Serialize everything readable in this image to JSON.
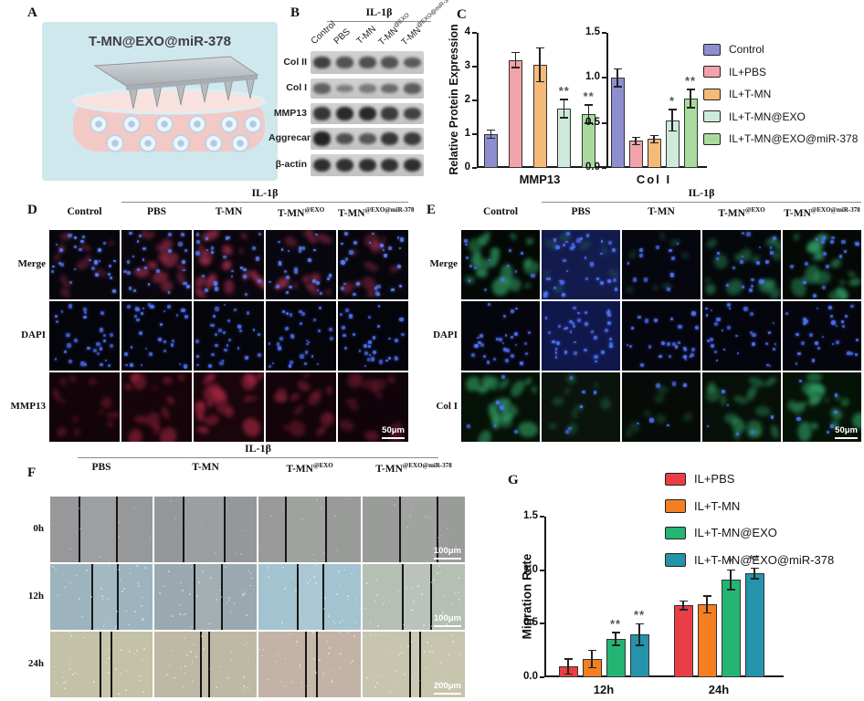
{
  "panelA": {
    "label": "A",
    "title": "T-MN@EXO@miR-378",
    "colors": {
      "bg": "#cfe8ee",
      "patch": "#c0c5c9",
      "tissue": "#f3c9c5",
      "tissue_top": "#f8e2df",
      "cell_outer": "#edf4fa",
      "cell_inner": "#aecbe3"
    }
  },
  "panelB": {
    "label": "B",
    "treatment_header": "IL-1β",
    "columns": [
      {
        "base": "Control",
        "sup": ""
      },
      {
        "base": "PBS",
        "sup": ""
      },
      {
        "base": "T-MN",
        "sup": ""
      },
      {
        "base": "T-MN",
        "sup": "@EXO"
      },
      {
        "base": "T-MN",
        "sup": "@EXO@miR-378"
      }
    ],
    "rows": [
      {
        "label": "Col II",
        "bands": [
          0.72,
          0.58,
          0.6,
          0.58,
          0.52
        ]
      },
      {
        "label": "Col I",
        "bands": [
          0.45,
          0.22,
          0.26,
          0.4,
          0.5
        ]
      },
      {
        "label": "MMP13",
        "bands": [
          0.82,
          0.92,
          0.92,
          0.78,
          0.72
        ]
      },
      {
        "label": "Aggrecan",
        "bands": [
          0.96,
          0.6,
          0.55,
          0.82,
          0.78
        ]
      },
      {
        "label": "β-actin",
        "bands": [
          0.88,
          0.86,
          0.88,
          0.86,
          0.88
        ]
      }
    ]
  },
  "panelC": {
    "label": "C",
    "legend": [
      {
        "label": "Control",
        "color": "#8d8ed0"
      },
      {
        "label": "IL+PBS",
        "color": "#f2a3aa"
      },
      {
        "label": "IL+T-MN",
        "color": "#f6ba78"
      },
      {
        "label": "IL+T-MN@EXO",
        "color": "#cfe9dc"
      },
      {
        "label": "IL+T-MN@EXO@miR-378",
        "color": "#a9db9f"
      }
    ]
  },
  "panelD": {
    "label": "D",
    "treatment_header": "IL-1β",
    "scale_bar": "50μm",
    "columns": [
      {
        "base": "Control",
        "sup": ""
      },
      {
        "base": "PBS",
        "sup": ""
      },
      {
        "base": "T-MN",
        "sup": ""
      },
      {
        "base": "T-MN",
        "sup": "@EXO"
      },
      {
        "base": "T-MN",
        "sup": "@EXO@miR-378"
      }
    ],
    "rows": [
      {
        "label": "Merge",
        "nuclei": 26,
        "ncolor": "#5b7cf2",
        "scolor": "#cf3a60",
        "stain": [
          0.3,
          0.55,
          0.75,
          0.45,
          0.35
        ],
        "bgs": [
          "#06060c",
          "#0a060d",
          "#0b060d",
          "#08060e",
          "#07060c"
        ]
      },
      {
        "label": "DAPI",
        "nuclei": 30,
        "ncolor": "#4d6ff2",
        "scolor": null,
        "stain": [
          0,
          0,
          0,
          0,
          0
        ],
        "bgs": [
          "#04040b",
          "#04040b",
          "#05050c",
          "#04040b",
          "#04040b"
        ]
      },
      {
        "label": "MMP13",
        "nuclei": 0,
        "ncolor": null,
        "scolor": "#a32742",
        "stain": [
          0.35,
          0.65,
          0.9,
          0.5,
          0.4
        ],
        "bgs": [
          "#120409",
          "#16040a",
          "#19050b",
          "#12040a",
          "#10040a"
        ]
      }
    ]
  },
  "panelE": {
    "label": "E",
    "treatment_header": "IL-1β",
    "scale_bar": "50μm",
    "columns": [
      {
        "base": "Control",
        "sup": ""
      },
      {
        "base": "PBS",
        "sup": ""
      },
      {
        "base": "T-MN",
        "sup": ""
      },
      {
        "base": "T-MN",
        "sup": "@EXO"
      },
      {
        "base": "T-MN",
        "sup": "@EXO@miR-378"
      }
    ],
    "rows": [
      {
        "label": "Merge",
        "nuclei": 16,
        "nucleiBy": [
          14,
          34,
          12,
          20,
          18
        ],
        "ncolor": "#4d6ff2",
        "scolor": "#35a86b",
        "stain": [
          0.8,
          0.08,
          0.1,
          0.5,
          0.75
        ],
        "bgs": [
          "#040905",
          "#131b4c",
          "#05060e",
          "#05080b",
          "#040905"
        ]
      },
      {
        "label": "DAPI",
        "nuclei": 30,
        "nucleiBy": [
          28,
          36,
          26,
          30,
          28
        ],
        "ncolor": "#4d6ff2",
        "scolor": null,
        "stain": [
          0,
          0,
          0,
          0,
          0
        ],
        "bgs": [
          "#05050d",
          "#10174a",
          "#05050d",
          "#04040c",
          "#05050d"
        ]
      },
      {
        "label": "Col I",
        "nuclei": 6,
        "ncolor": "#4d6ff2",
        "scolor": "#35a86b",
        "stain": [
          0.85,
          0.15,
          0.08,
          0.55,
          0.8
        ],
        "bgs": [
          "#051106",
          "#0a140c",
          "#060b07",
          "#061008",
          "#051206"
        ]
      }
    ]
  },
  "panelF": {
    "label": "F",
    "treatment_header": "IL-1β",
    "columns": [
      {
        "base": "PBS",
        "sup": ""
      },
      {
        "base": "T-MN",
        "sup": ""
      },
      {
        "base": "T-MN",
        "sup": "@EXO"
      },
      {
        "base": "T-MN",
        "sup": "@EXO@miR-378"
      }
    ],
    "rows": [
      {
        "label": "0h",
        "scale_bar": "100μm",
        "gap": 42,
        "bgs": [
          "#96989a",
          "#95989a",
          "#999b99",
          "#9a9c9a"
        ]
      },
      {
        "label": "12h",
        "scale_bar": "100μm",
        "gap": 30,
        "bgs": [
          "#9db4be",
          "#9aa9b0",
          "#a4c3d0",
          "#b5bfb4"
        ]
      },
      {
        "label": "24h",
        "scale_bar": "200μm",
        "gap": 10,
        "bgs": [
          "#c3c1a6",
          "#beb9a4",
          "#c3b3a6",
          "#c7c5ae"
        ]
      }
    ]
  },
  "panelG": {
    "label": "G",
    "legend": [
      {
        "label": "IL+PBS",
        "color": "#ea3e46"
      },
      {
        "label": "IL+T-MN",
        "color": "#f57f20"
      },
      {
        "label": "IL+T-MN@EXO",
        "color": "#24b573"
      },
      {
        "label": "IL+T-MN@EXO@miR-378",
        "color": "#2593ab"
      }
    ]
  },
  "chart_data": [
    {
      "id": "mmp13",
      "type": "bar",
      "title": "",
      "xlabel": "MMP13",
      "ylabel": "Relative Protein Expression",
      "ylim": [
        0,
        4
      ],
      "yticks": [
        "0",
        "1",
        "2",
        "3",
        "4"
      ],
      "groups": [
        "Control",
        "IL+PBS",
        "IL+T-MN",
        "IL+T-MN@EXO",
        "IL+T-MN@EXO@miR-378"
      ],
      "values": [
        1.0,
        3.2,
        3.05,
        1.75,
        1.6
      ],
      "errors": [
        0.12,
        0.22,
        0.5,
        0.27,
        0.27
      ],
      "sig": [
        "",
        "",
        "",
        "**",
        "**"
      ],
      "colors": [
        "#8d8ed0",
        "#f2a3aa",
        "#f6ba78",
        "#cfe9dc",
        "#a9db9f"
      ]
    },
    {
      "id": "col1",
      "type": "bar",
      "title": "",
      "xlabel": "Col I",
      "ylabel": "",
      "ylim": [
        0,
        1.5
      ],
      "yticks": [
        "0.0",
        "0.5",
        "1.0",
        "1.5"
      ],
      "groups": [
        "Control",
        "IL+PBS",
        "IL+T-MN",
        "IL+T-MN@EXO",
        "IL+T-MN@EXO@miR-378"
      ],
      "values": [
        1.0,
        0.3,
        0.32,
        0.53,
        0.77
      ],
      "errors": [
        0.1,
        0.04,
        0.04,
        0.12,
        0.1
      ],
      "sig": [
        "",
        "",
        "",
        "*",
        "**"
      ],
      "colors": [
        "#8d8ed0",
        "#f2a3aa",
        "#f6ba78",
        "#cfe9dc",
        "#a9db9f"
      ]
    },
    {
      "id": "migration",
      "type": "grouped-bar",
      "title": "",
      "xlabel": "",
      "ylabel": "Migration Rate",
      "ylim": [
        0,
        1.5
      ],
      "yticks": [
        "0.0",
        "0.5",
        "1.0",
        "1.5"
      ],
      "categories": [
        "12h",
        "24h"
      ],
      "series": [
        {
          "name": "IL+PBS",
          "color": "#ea3e46",
          "values": [
            0.1,
            0.67
          ],
          "errors": [
            0.07,
            0.04
          ],
          "sig": [
            "",
            ""
          ]
        },
        {
          "name": "IL+T-MN",
          "color": "#f57f20",
          "values": [
            0.17,
            0.68
          ],
          "errors": [
            0.08,
            0.08
          ],
          "sig": [
            "",
            ""
          ]
        },
        {
          "name": "IL+T-MN@EXO",
          "color": "#24b573",
          "values": [
            0.36,
            0.91
          ],
          "errors": [
            0.06,
            0.09
          ],
          "sig": [
            "**",
            "*"
          ]
        },
        {
          "name": "IL+T-MN@EXO@miR-378",
          "color": "#2593ab",
          "values": [
            0.4,
            0.97
          ],
          "errors": [
            0.1,
            0.05
          ],
          "sig": [
            "**",
            "**"
          ]
        }
      ]
    }
  ]
}
